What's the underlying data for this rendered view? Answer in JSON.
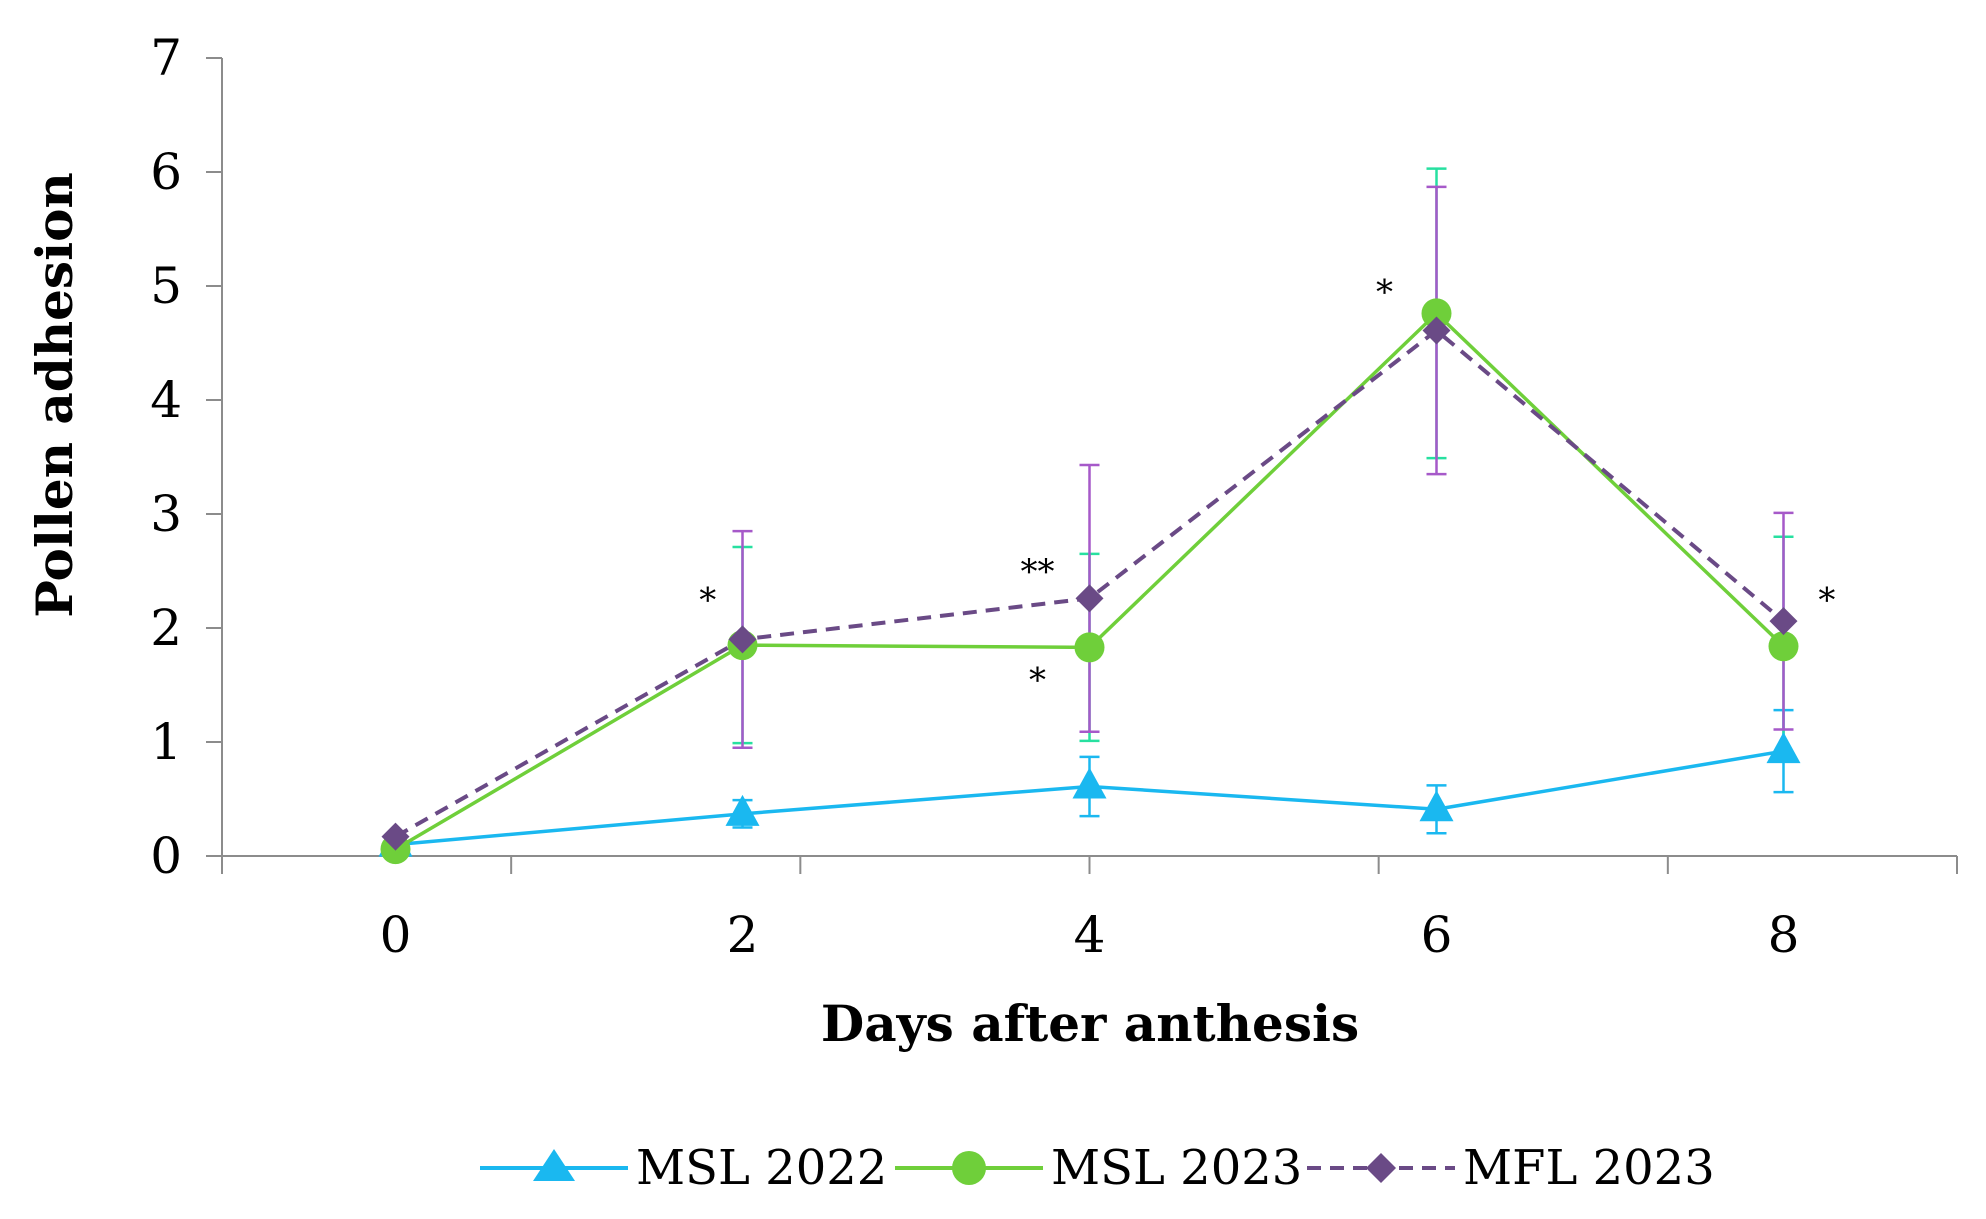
{
  "chart_data": {
    "type": "line",
    "title": "",
    "xlabel": "Days after anthesis",
    "ylabel": "Pollen adhesion",
    "x": [
      0,
      2,
      4,
      6,
      8
    ],
    "x_tick_labels": [
      "0",
      "2",
      "4",
      "6",
      "8"
    ],
    "xlim": [
      -1,
      9
    ],
    "ylim": [
      0,
      7
    ],
    "y_ticks": [
      0,
      1,
      2,
      3,
      4,
      5,
      6,
      7
    ],
    "y_tick_labels": [
      "0",
      "1",
      "2",
      "3",
      "4",
      "5",
      "6",
      "7"
    ],
    "grid": false,
    "legend_position": "bottom",
    "series": [
      {
        "name": "MSL 2022",
        "color": "#1ab8f0",
        "marker": "triangle",
        "line_style": "solid",
        "values": [
          0.1,
          0.37,
          0.61,
          0.41,
          0.92
        ],
        "errors": [
          null,
          0.12,
          0.26,
          0.21,
          0.36
        ]
      },
      {
        "name": "MSL 2023",
        "color": "#6fcf3a",
        "error_color": "#27e0a0",
        "marker": "circle",
        "line_style": "solid",
        "values": [
          0.06,
          1.85,
          1.83,
          4.76,
          1.84
        ],
        "errors": [
          null,
          0.86,
          0.82,
          1.27,
          0.96
        ]
      },
      {
        "name": "MFL 2023",
        "color": "#6a4a86",
        "error_color": "#a659c9",
        "marker": "diamond",
        "line_style": "dashed",
        "values": [
          0.17,
          1.9,
          2.26,
          4.61,
          2.06
        ],
        "errors": [
          null,
          0.95,
          1.17,
          1.26,
          0.95
        ]
      }
    ],
    "annotations": [
      {
        "text": "*",
        "x": 1.8,
        "y": 2.25
      },
      {
        "text": "**",
        "x": 3.7,
        "y": 2.5
      },
      {
        "text": "*",
        "x": 3.7,
        "y": 1.55
      },
      {
        "text": "*",
        "x": 5.7,
        "y": 4.95
      },
      {
        "text": "*",
        "x": 8.25,
        "y": 2.25
      }
    ]
  }
}
